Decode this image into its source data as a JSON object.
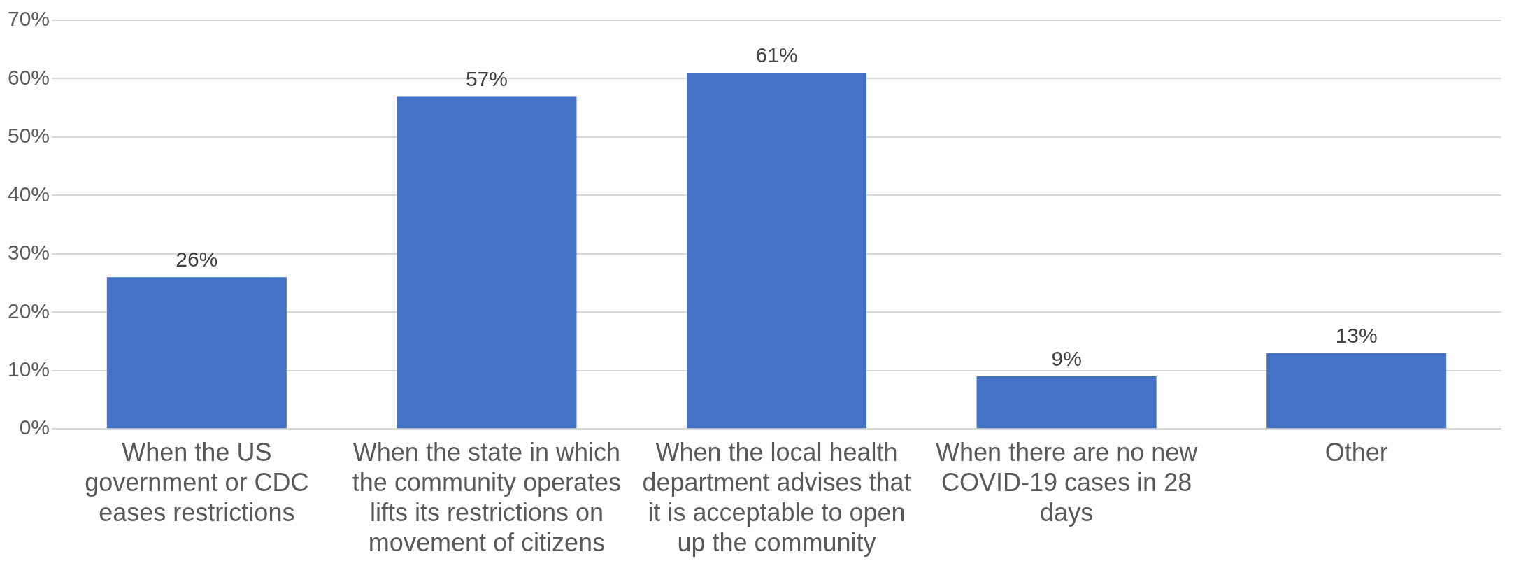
{
  "chart_data": {
    "type": "bar",
    "categories": [
      "When the US government or CDC eases restrictions",
      "When the state in which the community operates lifts its restrictions on movement of citizens",
      "When the local health department advises that it is acceptable to open up the community",
      "When there are no new COVID-19 cases in 28 days",
      "Other"
    ],
    "values": [
      26,
      57,
      61,
      9,
      13
    ],
    "value_labels": [
      "26%",
      "57%",
      "61%",
      "9%",
      "13%"
    ],
    "color": "#4472c4",
    "ylim": [
      0,
      70
    ],
    "yticks": [
      {
        "value": 0,
        "label": "0%"
      },
      {
        "value": 10,
        "label": "10%"
      },
      {
        "value": 20,
        "label": "20%"
      },
      {
        "value": 30,
        "label": "30%"
      },
      {
        "value": 40,
        "label": "40%"
      },
      {
        "value": 50,
        "label": "50%"
      },
      {
        "value": 60,
        "label": "60%"
      },
      {
        "value": 70,
        "label": "70%"
      }
    ],
    "grid": "y",
    "legend": false
  }
}
